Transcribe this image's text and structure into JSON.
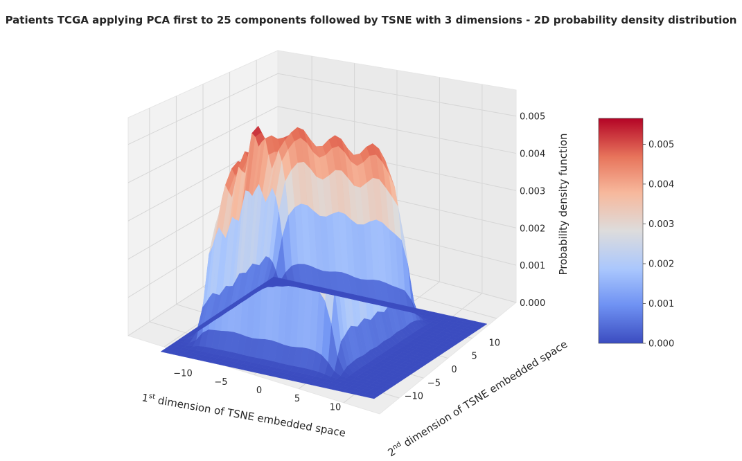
{
  "chart_data": {
    "type": "surface3d",
    "title": "Patients TCGA applying PCA first to 25 components followed by TSNE with 3 dimensions - 2D probability density distribution",
    "xlabel": {
      "prefix": "1",
      "sup": "st",
      "rest": " dimension of TSNE embedded space"
    },
    "ylabel": {
      "prefix": "2",
      "sup": "nd",
      "rest": " dimension of TSNE embedded space"
    },
    "zlabel": "Probability density function",
    "x_ticks": [
      -10,
      -5,
      0,
      5,
      10
    ],
    "y_ticks": [
      -10,
      -5,
      0,
      5,
      10
    ],
    "z_ticks": [
      "0.000",
      "0.001",
      "0.002",
      "0.003",
      "0.004",
      "0.005"
    ],
    "x_tick_labels": [
      "−10",
      "−5",
      "0",
      "5",
      "10"
    ],
    "y_tick_labels": [
      "−10",
      "−5",
      "0",
      "5",
      "10"
    ],
    "xlim": [
      -14,
      14
    ],
    "ylim": [
      -14,
      14
    ],
    "zlim": [
      0,
      0.0057
    ],
    "colormap": "coolwarm",
    "colorbar": {
      "min": 0.0,
      "max": 0.00565,
      "ticks": [
        "0.000",
        "0.001",
        "0.002",
        "0.003",
        "0.004",
        "0.005"
      ],
      "colors": [
        "#3b4cc0",
        "#6f92f3",
        "#aac7fd",
        "#dddcdc",
        "#f7b89c",
        "#e7745b",
        "#b40426"
      ]
    },
    "peak_density": 0.0056,
    "plateau_density": 0.0045,
    "support_x": [
      -11,
      6
    ],
    "support_y": [
      -9,
      10
    ]
  }
}
